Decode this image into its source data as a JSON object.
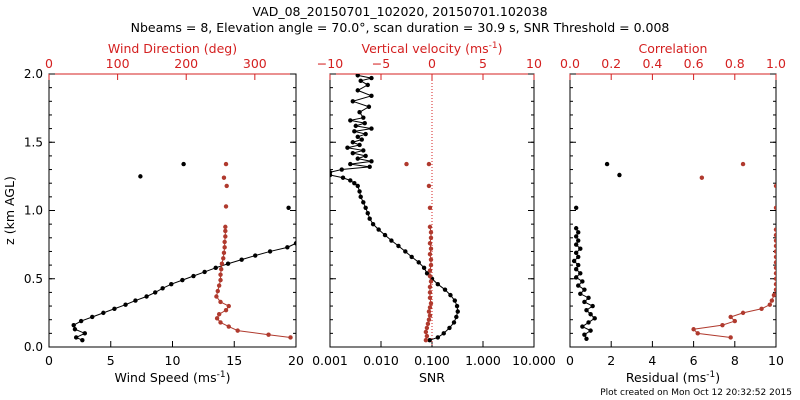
{
  "title_line1": "VAD_08_20150701_102020, 20150701.102038",
  "title_line2": "Nbeams = 8, Elevation angle = 70.0°, scan duration = 30.9 s, SNR Threshold = 0.008",
  "footer": "Plot created on Mon Oct 12 20:32:52 2015",
  "colors": {
    "black_series": "#000000",
    "red_series": "#b03a2e",
    "top_axis": "#d42020",
    "ref_line": "#d42020"
  },
  "chart_data": [
    {
      "type": "scatter",
      "panel": "wind",
      "ylabel": "z (km AGL)",
      "ylim": [
        0,
        2
      ],
      "yticks": [
        "0.0",
        "0.5",
        "1.0",
        "1.5",
        "2.0"
      ],
      "xlabel_bottom": "Wind Speed (ms",
      "xlabel_bottom_sup": "-1",
      "xlabel_bottom_end": ")",
      "xlim_bottom": [
        0,
        20
      ],
      "xticks_bottom": [
        "0",
        "5",
        "10",
        "15",
        "20"
      ],
      "xlabel_top": "Wind Direction (deg)",
      "xlim_top": [
        0,
        360
      ],
      "xticks_top": [
        "0",
        "100",
        "200",
        "300"
      ],
      "series": [
        {
          "axis": "bottom",
          "color": "black",
          "points": [
            [
              2.7,
              0.05
            ],
            [
              2.2,
              0.07
            ],
            [
              2.9,
              0.1
            ],
            [
              2.1,
              0.13
            ],
            [
              2.0,
              0.16
            ],
            [
              2.6,
              0.19
            ],
            [
              3.5,
              0.22
            ],
            [
              4.4,
              0.25
            ],
            [
              5.3,
              0.28
            ],
            [
              6.2,
              0.31
            ],
            [
              7.0,
              0.34
            ],
            [
              7.9,
              0.37
            ],
            [
              8.6,
              0.4
            ],
            [
              9.2,
              0.43
            ],
            [
              9.9,
              0.46
            ],
            [
              10.8,
              0.49
            ],
            [
              11.7,
              0.52
            ],
            [
              12.6,
              0.55
            ],
            [
              13.5,
              0.58
            ],
            [
              14.5,
              0.61
            ],
            [
              15.6,
              0.64
            ],
            [
              16.7,
              0.67
            ],
            [
              17.9,
              0.7
            ],
            [
              19.3,
              0.73
            ],
            [
              20.0,
              0.76
            ]
          ],
          "isolated": [
            [
              7.4,
              1.25
            ],
            [
              10.9,
              1.34
            ],
            [
              19.4,
              1.02
            ]
          ]
        },
        {
          "axis": "top",
          "color": "red",
          "points": [
            [
              352,
              0.07
            ],
            [
              320,
              0.09
            ],
            [
              275,
              0.12
            ],
            [
              262,
              0.15
            ],
            [
              250,
              0.18
            ],
            [
              245,
              0.21
            ],
            [
              248,
              0.24
            ],
            [
              258,
              0.27
            ],
            [
              262,
              0.3
            ],
            [
              250,
              0.33
            ],
            [
              244,
              0.37
            ],
            [
              246,
              0.41
            ],
            [
              248,
              0.45
            ],
            [
              250,
              0.49
            ],
            [
              250,
              0.53
            ],
            [
              251,
              0.57
            ],
            [
              252,
              0.61
            ],
            [
              254,
              0.65
            ],
            [
              255,
              0.69
            ],
            [
              256,
              0.73
            ],
            [
              256,
              0.77
            ],
            [
              257,
              0.81
            ],
            [
              257,
              0.85
            ],
            [
              257,
              0.88
            ]
          ],
          "isolated": [
            [
              258,
              1.03
            ],
            [
              259,
              1.18
            ],
            [
              255,
              1.24
            ],
            [
              258,
              1.34
            ]
          ]
        }
      ]
    },
    {
      "type": "scatter",
      "panel": "snr",
      "ylim": [
        0,
        2
      ],
      "xlabel_bottom": "SNR",
      "xscale_bottom": "log",
      "xlim_bottom": [
        0.001,
        10
      ],
      "xticks_bottom": [
        "0.001",
        "0.010",
        "0.100",
        "1.000",
        "10.000"
      ],
      "xlabel_top": "Vertical velocity (ms",
      "xlabel_top_sup": "-1",
      "xlabel_top_end": ")",
      "xlim_top": [
        -10,
        10
      ],
      "xticks_top": [
        "−10",
        "−5",
        "0",
        "5",
        "10"
      ],
      "reference_line_top_x": 0,
      "series": [
        {
          "axis": "bottom",
          "color": "black",
          "points": [
            [
              0.09,
              0.05
            ],
            [
              0.13,
              0.07
            ],
            [
              0.17,
              0.1
            ],
            [
              0.22,
              0.14
            ],
            [
              0.27,
              0.18
            ],
            [
              0.3,
              0.22
            ],
            [
              0.32,
              0.26
            ],
            [
              0.31,
              0.3
            ],
            [
              0.28,
              0.34
            ],
            [
              0.23,
              0.38
            ],
            [
              0.18,
              0.42
            ],
            [
              0.13,
              0.46
            ],
            [
              0.1,
              0.5
            ],
            [
              0.08,
              0.54
            ],
            [
              0.07,
              0.58
            ],
            [
              0.055,
              0.62
            ],
            [
              0.04,
              0.66
            ],
            [
              0.03,
              0.7
            ],
            [
              0.022,
              0.74
            ],
            [
              0.016,
              0.78
            ],
            [
              0.012,
              0.82
            ],
            [
              0.009,
              0.86
            ],
            [
              0.007,
              0.9
            ],
            [
              0.006,
              0.94
            ],
            [
              0.0055,
              0.98
            ],
            [
              0.005,
              1.02
            ],
            [
              0.0045,
              1.06
            ],
            [
              0.004,
              1.1
            ],
            [
              0.0038,
              1.14
            ],
            [
              0.0035,
              1.18
            ],
            [
              0.003,
              1.2
            ],
            [
              0.0025,
              1.22
            ],
            [
              0.0018,
              1.24
            ],
            [
              0.001,
              1.26
            ],
            [
              0.001,
              1.28
            ],
            [
              0.0017,
              1.3
            ],
            [
              0.006,
              1.32
            ],
            [
              0.0025,
              1.34
            ],
            [
              0.0065,
              1.36
            ],
            [
              0.0035,
              1.38
            ],
            [
              0.005,
              1.4
            ],
            [
              0.0028,
              1.42
            ],
            [
              0.0045,
              1.44
            ],
            [
              0.0022,
              1.46
            ],
            [
              0.0038,
              1.48
            ],
            [
              0.0028,
              1.5
            ],
            [
              0.0042,
              1.52
            ],
            [
              0.0035,
              1.54
            ],
            [
              0.005,
              1.56
            ],
            [
              0.003,
              1.58
            ],
            [
              0.0065,
              1.6
            ],
            [
              0.0032,
              1.62
            ],
            [
              0.0048,
              1.64
            ],
            [
              0.0025,
              1.66
            ],
            [
              0.0045,
              1.68
            ],
            [
              0.0038,
              1.72
            ],
            [
              0.0058,
              1.76
            ],
            [
              0.0028,
              1.8
            ],
            [
              0.0065,
              1.84
            ],
            [
              0.0035,
              1.88
            ],
            [
              0.0055,
              1.92
            ],
            [
              0.004,
              1.95
            ],
            [
              0.0065,
              1.97
            ],
            [
              0.0035,
              1.99
            ]
          ]
        },
        {
          "axis": "top",
          "color": "red",
          "points": [
            [
              -0.6,
              0.05
            ],
            [
              -0.5,
              0.08
            ],
            [
              -0.6,
              0.11
            ],
            [
              -0.5,
              0.14
            ],
            [
              -0.4,
              0.17
            ],
            [
              -0.3,
              0.2
            ],
            [
              -0.2,
              0.23
            ],
            [
              -0.3,
              0.26
            ],
            [
              -0.2,
              0.29
            ],
            [
              -0.1,
              0.32
            ],
            [
              -0.2,
              0.36
            ],
            [
              -0.2,
              0.4
            ],
            [
              -0.2,
              0.44
            ],
            [
              -0.1,
              0.48
            ],
            [
              -0.2,
              0.52
            ],
            [
              -0.2,
              0.56
            ],
            [
              -0.1,
              0.6
            ],
            [
              -0.1,
              0.64
            ],
            [
              -0.2,
              0.68
            ],
            [
              -0.1,
              0.72
            ],
            [
              -0.2,
              0.76
            ],
            [
              -0.1,
              0.8
            ],
            [
              -0.1,
              0.84
            ],
            [
              -0.2,
              0.88
            ]
          ],
          "isolated": [
            [
              -0.2,
              1.02
            ],
            [
              -0.3,
              1.18
            ],
            [
              -2.5,
              1.34
            ],
            [
              -0.3,
              1.34
            ]
          ]
        }
      ]
    },
    {
      "type": "scatter",
      "panel": "residual",
      "ylim": [
        0,
        2
      ],
      "xlabel_bottom": "Residual (ms",
      "xlabel_bottom_sup": "-1",
      "xlabel_bottom_end": ")",
      "xlim_bottom": [
        0,
        10
      ],
      "xticks_bottom": [
        "0",
        "2",
        "4",
        "6",
        "8",
        "10"
      ],
      "xlabel_top": "Correlation",
      "xlim_top": [
        0,
        1
      ],
      "xticks_top": [
        "0.0",
        "0.2",
        "0.4",
        "0.6",
        "0.8",
        "1.0"
      ],
      "series": [
        {
          "axis": "bottom",
          "color": "black",
          "points": [
            [
              0.8,
              0.06
            ],
            [
              0.7,
              0.09
            ],
            [
              1.0,
              0.12
            ],
            [
              0.6,
              0.15
            ],
            [
              0.9,
              0.18
            ],
            [
              1.2,
              0.21
            ],
            [
              1.0,
              0.24
            ],
            [
              0.8,
              0.27
            ],
            [
              1.1,
              0.3
            ],
            [
              0.7,
              0.33
            ],
            [
              0.9,
              0.36
            ],
            [
              0.5,
              0.39
            ],
            [
              0.7,
              0.42
            ],
            [
              0.4,
              0.45
            ],
            [
              0.6,
              0.48
            ],
            [
              0.3,
              0.51
            ],
            [
              0.5,
              0.54
            ],
            [
              0.3,
              0.57
            ],
            [
              0.4,
              0.6
            ],
            [
              0.2,
              0.63
            ],
            [
              0.4,
              0.66
            ],
            [
              0.3,
              0.69
            ],
            [
              0.5,
              0.72
            ],
            [
              0.3,
              0.75
            ],
            [
              0.4,
              0.78
            ],
            [
              0.3,
              0.81
            ],
            [
              0.4,
              0.84
            ],
            [
              0.3,
              0.87
            ]
          ],
          "isolated": [
            [
              0.3,
              1.02
            ],
            [
              1.8,
              1.34
            ],
            [
              2.4,
              1.26
            ]
          ]
        },
        {
          "axis": "top",
          "color": "red",
          "points": [
            [
              0.78,
              0.07
            ],
            [
              0.62,
              0.1
            ],
            [
              0.6,
              0.13
            ],
            [
              0.74,
              0.16
            ],
            [
              0.8,
              0.19
            ],
            [
              0.78,
              0.22
            ],
            [
              0.84,
              0.25
            ],
            [
              0.93,
              0.28
            ],
            [
              0.97,
              0.31
            ],
            [
              0.98,
              0.34
            ],
            [
              0.99,
              0.38
            ],
            [
              1.0,
              0.42
            ],
            [
              1.0,
              0.46
            ],
            [
              1.0,
              0.5
            ],
            [
              1.0,
              0.54
            ],
            [
              1.0,
              0.58
            ],
            [
              1.0,
              0.62
            ],
            [
              1.0,
              0.66
            ],
            [
              1.0,
              0.7
            ],
            [
              1.0,
              0.74
            ],
            [
              1.0,
              0.78
            ],
            [
              1.0,
              0.82
            ],
            [
              1.0,
              0.86
            ]
          ],
          "isolated": [
            [
              1.0,
              1.02
            ],
            [
              1.0,
              1.18
            ],
            [
              0.64,
              1.24
            ],
            [
              0.84,
              1.34
            ]
          ]
        }
      ]
    }
  ]
}
